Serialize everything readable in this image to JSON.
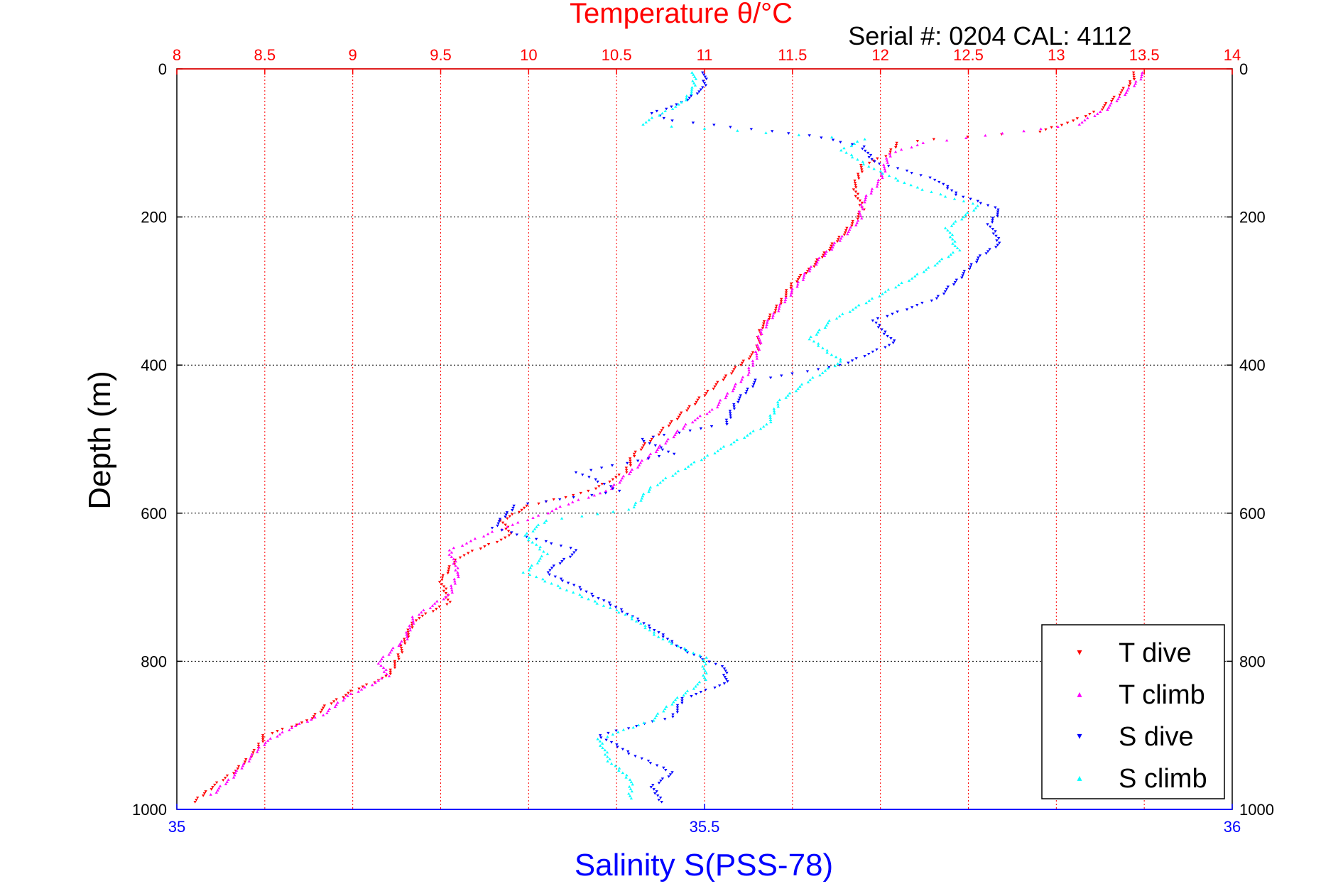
{
  "colors": {
    "t_dive": "#ff0000",
    "t_climb": "#ff00ff",
    "s_dive": "#0000ff",
    "s_climb": "#00ffff",
    "temp_axis": "#ff0000",
    "sal_axis": "#0000ff",
    "grid_temp": "#ff0000",
    "grid_depth": "#000000"
  },
  "chart_data": {
    "type": "scatter",
    "title": "Temperature θ/°C",
    "annotation": "Serial #: 0204  CAL: 4112",
    "top_axis": {
      "label": "Temperature θ/°C",
      "range": [
        8,
        14
      ],
      "ticks": [
        "8",
        "8.5",
        "9",
        "9.5",
        "10",
        "10.5",
        "11",
        "11.5",
        "12",
        "12.5",
        "13",
        "13.5",
        "14"
      ]
    },
    "bottom_axis": {
      "label": "Salinity S(PSS-78)",
      "range": [
        35,
        36
      ],
      "ticks": [
        "35",
        "35.5",
        "36"
      ]
    },
    "y_axis": {
      "label": "Depth (m)",
      "range": [
        0,
        1000
      ],
      "reversed": true,
      "ticks": [
        "0",
        "200",
        "400",
        "600",
        "800",
        "1000"
      ]
    },
    "grid": true,
    "legend_position": "bottom-right",
    "series": [
      {
        "name": "T dive",
        "axis": "temperature",
        "color": "#ff0000",
        "points": [
          [
            13.45,
            5
          ],
          [
            13.42,
            20
          ],
          [
            13.35,
            35
          ],
          [
            13.25,
            55
          ],
          [
            13.1,
            70
          ],
          [
            12.9,
            85
          ],
          [
            12.3,
            95
          ],
          [
            12.1,
            100
          ],
          [
            12.05,
            115
          ],
          [
            11.9,
            130
          ],
          [
            11.85,
            160
          ],
          [
            11.9,
            190
          ],
          [
            11.82,
            215
          ],
          [
            11.7,
            245
          ],
          [
            11.6,
            270
          ],
          [
            11.5,
            290
          ],
          [
            11.42,
            320
          ],
          [
            11.32,
            350
          ],
          [
            11.3,
            380
          ],
          [
            11.2,
            400
          ],
          [
            11.1,
            420
          ],
          [
            10.95,
            450
          ],
          [
            10.85,
            470
          ],
          [
            10.7,
            500
          ],
          [
            10.6,
            520
          ],
          [
            10.55,
            545
          ],
          [
            10.35,
            570
          ],
          [
            10.0,
            590
          ],
          [
            9.85,
            610
          ],
          [
            9.9,
            630
          ],
          [
            9.6,
            660
          ],
          [
            9.5,
            690
          ],
          [
            9.55,
            720
          ],
          [
            9.35,
            745
          ],
          [
            9.3,
            770
          ],
          [
            9.25,
            800
          ],
          [
            9.2,
            820
          ],
          [
            9.0,
            840
          ],
          [
            8.85,
            860
          ],
          [
            8.75,
            880
          ],
          [
            8.5,
            900
          ],
          [
            8.45,
            920
          ],
          [
            8.35,
            945
          ],
          [
            8.2,
            970
          ],
          [
            8.1,
            990
          ]
        ]
      },
      {
        "name": "T climb",
        "axis": "temperature",
        "color": "#ff00ff",
        "points": [
          [
            13.5,
            5
          ],
          [
            13.45,
            20
          ],
          [
            13.38,
            35
          ],
          [
            13.28,
            55
          ],
          [
            13.12,
            75
          ],
          [
            12.6,
            90
          ],
          [
            12.25,
            100
          ],
          [
            12.05,
            115
          ],
          [
            12.0,
            150
          ],
          [
            11.9,
            180
          ],
          [
            11.88,
            205
          ],
          [
            11.75,
            235
          ],
          [
            11.6,
            270
          ],
          [
            11.5,
            300
          ],
          [
            11.4,
            330
          ],
          [
            11.32,
            355
          ],
          [
            11.3,
            385
          ],
          [
            11.25,
            410
          ],
          [
            11.15,
            435
          ],
          [
            11.05,
            460
          ],
          [
            10.9,
            480
          ],
          [
            10.8,
            500
          ],
          [
            10.7,
            520
          ],
          [
            10.55,
            550
          ],
          [
            10.45,
            570
          ],
          [
            10.25,
            585
          ],
          [
            10.1,
            600
          ],
          [
            9.8,
            625
          ],
          [
            9.55,
            650
          ],
          [
            9.6,
            680
          ],
          [
            9.55,
            710
          ],
          [
            9.35,
            740
          ],
          [
            9.3,
            770
          ],
          [
            9.15,
            800
          ],
          [
            9.2,
            820
          ],
          [
            8.95,
            850
          ],
          [
            8.85,
            870
          ],
          [
            8.65,
            890
          ],
          [
            8.5,
            910
          ],
          [
            8.4,
            935
          ],
          [
            8.3,
            960
          ],
          [
            8.2,
            980
          ]
        ]
      },
      {
        "name": "S dive",
        "axis": "salinity",
        "color": "#0000ff",
        "points": [
          [
            35.5,
            5
          ],
          [
            35.5,
            25
          ],
          [
            35.48,
            45
          ],
          [
            35.45,
            60
          ],
          [
            35.47,
            70
          ],
          [
            35.6,
            90
          ],
          [
            35.65,
            105
          ],
          [
            35.66,
            125
          ],
          [
            35.72,
            150
          ],
          [
            35.74,
            170
          ],
          [
            35.78,
            190
          ],
          [
            35.77,
            210
          ],
          [
            35.78,
            235
          ],
          [
            35.76,
            255
          ],
          [
            35.74,
            285
          ],
          [
            35.72,
            310
          ],
          [
            35.66,
            340
          ],
          [
            35.68,
            370
          ],
          [
            35.63,
            400
          ],
          [
            35.55,
            420
          ],
          [
            35.53,
            450
          ],
          [
            35.52,
            480
          ],
          [
            35.44,
            500
          ],
          [
            35.47,
            520
          ],
          [
            35.38,
            545
          ],
          [
            35.42,
            570
          ],
          [
            35.32,
            590
          ],
          [
            35.3,
            620
          ],
          [
            35.38,
            650
          ],
          [
            35.35,
            680
          ],
          [
            35.38,
            700
          ],
          [
            35.42,
            730
          ],
          [
            35.45,
            755
          ],
          [
            35.48,
            785
          ],
          [
            35.52,
            810
          ],
          [
            35.52,
            830
          ],
          [
            35.48,
            850
          ],
          [
            35.47,
            875
          ],
          [
            35.4,
            900
          ],
          [
            35.43,
            925
          ],
          [
            35.47,
            950
          ],
          [
            35.45,
            970
          ],
          [
            35.46,
            990
          ]
        ]
      },
      {
        "name": "S climb",
        "axis": "salinity",
        "color": "#00ffff",
        "points": [
          [
            35.49,
            5
          ],
          [
            35.49,
            25
          ],
          [
            35.48,
            45
          ],
          [
            35.44,
            75
          ],
          [
            35.65,
            95
          ],
          [
            35.63,
            110
          ],
          [
            35.66,
            135
          ],
          [
            35.7,
            160
          ],
          [
            35.76,
            185
          ],
          [
            35.73,
            215
          ],
          [
            35.74,
            245
          ],
          [
            35.7,
            280
          ],
          [
            35.66,
            310
          ],
          [
            35.62,
            340
          ],
          [
            35.6,
            365
          ],
          [
            35.63,
            395
          ],
          [
            35.6,
            420
          ],
          [
            35.57,
            450
          ],
          [
            35.56,
            480
          ],
          [
            35.52,
            510
          ],
          [
            35.48,
            540
          ],
          [
            35.45,
            565
          ],
          [
            35.43,
            595
          ],
          [
            35.35,
            610
          ],
          [
            35.33,
            630
          ],
          [
            35.35,
            655
          ],
          [
            35.33,
            680
          ],
          [
            35.38,
            710
          ],
          [
            35.43,
            740
          ],
          [
            35.46,
            770
          ],
          [
            35.5,
            795
          ],
          [
            35.5,
            825
          ],
          [
            35.47,
            855
          ],
          [
            35.45,
            880
          ],
          [
            35.4,
            905
          ],
          [
            35.41,
            935
          ],
          [
            35.43,
            960
          ],
          [
            35.43,
            985
          ]
        ]
      }
    ]
  },
  "legend": {
    "items": [
      {
        "label": "T dive",
        "marker": "▾",
        "color": "#ff0000"
      },
      {
        "label": "T climb",
        "marker": "▴",
        "color": "#ff00ff"
      },
      {
        "label": "S dive",
        "marker": "▾",
        "color": "#0000ff"
      },
      {
        "label": "S climb",
        "marker": "▴",
        "color": "#00ffff"
      }
    ]
  }
}
